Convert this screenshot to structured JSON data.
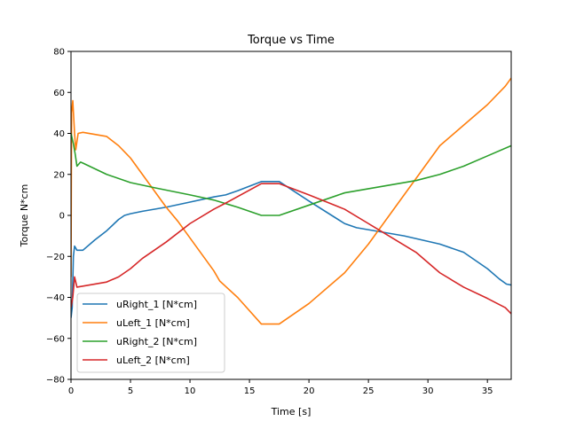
{
  "chart_data": {
    "type": "line",
    "title": "Torque vs Time",
    "xlabel": "Time [s]",
    "ylabel": "Torque N*cm",
    "xlim": [
      0,
      37
    ],
    "ylim": [
      -80,
      80
    ],
    "xticks": [
      0,
      5,
      10,
      15,
      20,
      25,
      30,
      35
    ],
    "yticks": [
      -80,
      -60,
      -40,
      -20,
      0,
      20,
      40,
      60,
      80
    ],
    "grid": false,
    "legend_position": "lower-left",
    "series": [
      {
        "name": "uRight_1 [N*cm]",
        "color": "#1f77b4",
        "points": [
          [
            0,
            -50
          ],
          [
            0.1,
            -45
          ],
          [
            0.2,
            -20
          ],
          [
            0.3,
            -15
          ],
          [
            0.5,
            -17
          ],
          [
            1,
            -17
          ],
          [
            2,
            -12
          ],
          [
            3,
            -7.5
          ],
          [
            4,
            -2
          ],
          [
            4.5,
            0
          ],
          [
            5,
            0.8
          ],
          [
            6,
            2
          ],
          [
            8,
            4
          ],
          [
            10,
            6.5
          ],
          [
            12,
            9
          ],
          [
            13,
            10
          ],
          [
            14,
            12
          ],
          [
            16,
            16.5
          ],
          [
            17.5,
            16.5
          ],
          [
            20,
            7
          ],
          [
            23,
            -4
          ],
          [
            24,
            -6
          ],
          [
            26,
            -8
          ],
          [
            28,
            -10
          ],
          [
            31,
            -14
          ],
          [
            33,
            -18
          ],
          [
            35,
            -26
          ],
          [
            36,
            -31
          ],
          [
            36.6,
            -33.5
          ],
          [
            37,
            -34
          ]
        ]
      },
      {
        "name": "uLeft_1 [N*cm]",
        "color": "#ff7f0e",
        "points": [
          [
            0,
            -30
          ],
          [
            0.05,
            50
          ],
          [
            0.15,
            56
          ],
          [
            0.3,
            40
          ],
          [
            0.4,
            32
          ],
          [
            0.6,
            40
          ],
          [
            1,
            40.5
          ],
          [
            3,
            38.5
          ],
          [
            4,
            34
          ],
          [
            4.5,
            31
          ],
          [
            5,
            28
          ],
          [
            6,
            20
          ],
          [
            7,
            12
          ],
          [
            8,
            4
          ],
          [
            9,
            -3
          ],
          [
            10,
            -11
          ],
          [
            11,
            -19
          ],
          [
            12,
            -27
          ],
          [
            12.5,
            -32
          ],
          [
            14,
            -40
          ],
          [
            16,
            -53
          ],
          [
            17.5,
            -53
          ],
          [
            20,
            -43
          ],
          [
            23,
            -28
          ],
          [
            25,
            -14
          ],
          [
            27,
            2
          ],
          [
            29,
            18
          ],
          [
            31,
            34
          ],
          [
            33,
            44
          ],
          [
            35,
            54
          ],
          [
            36.5,
            63
          ],
          [
            37,
            67
          ]
        ]
      },
      {
        "name": "uRight_2 [N*cm]",
        "color": "#2ca02c",
        "points": [
          [
            0,
            40
          ],
          [
            0.2,
            35
          ],
          [
            0.35,
            30
          ],
          [
            0.5,
            24
          ],
          [
            0.8,
            26
          ],
          [
            1,
            25.5
          ],
          [
            3,
            20
          ],
          [
            5,
            16
          ],
          [
            7,
            13.5
          ],
          [
            10,
            10
          ],
          [
            12,
            7.5
          ],
          [
            14,
            4
          ],
          [
            16,
            0
          ],
          [
            17.5,
            0
          ],
          [
            20,
            5
          ],
          [
            23,
            11
          ],
          [
            25,
            13
          ],
          [
            27,
            15
          ],
          [
            29,
            17
          ],
          [
            31,
            20
          ],
          [
            33,
            24
          ],
          [
            35,
            29
          ],
          [
            37,
            34
          ]
        ]
      },
      {
        "name": "uLeft_2 [N*cm]",
        "color": "#d62728",
        "points": [
          [
            0,
            -45
          ],
          [
            0.15,
            -40
          ],
          [
            0.3,
            -30
          ],
          [
            0.5,
            -35
          ],
          [
            1,
            -34.5
          ],
          [
            3,
            -32.5
          ],
          [
            4,
            -30
          ],
          [
            5,
            -26
          ],
          [
            6,
            -21
          ],
          [
            8,
            -13
          ],
          [
            10,
            -4
          ],
          [
            12,
            3
          ],
          [
            13,
            6
          ],
          [
            16,
            15.5
          ],
          [
            17.5,
            15.5
          ],
          [
            20,
            10
          ],
          [
            23,
            3
          ],
          [
            25,
            -4
          ],
          [
            27,
            -11
          ],
          [
            29,
            -18
          ],
          [
            31,
            -28
          ],
          [
            33,
            -35
          ],
          [
            35,
            -40.5
          ],
          [
            36.5,
            -45
          ],
          [
            37,
            -48
          ]
        ]
      }
    ]
  }
}
